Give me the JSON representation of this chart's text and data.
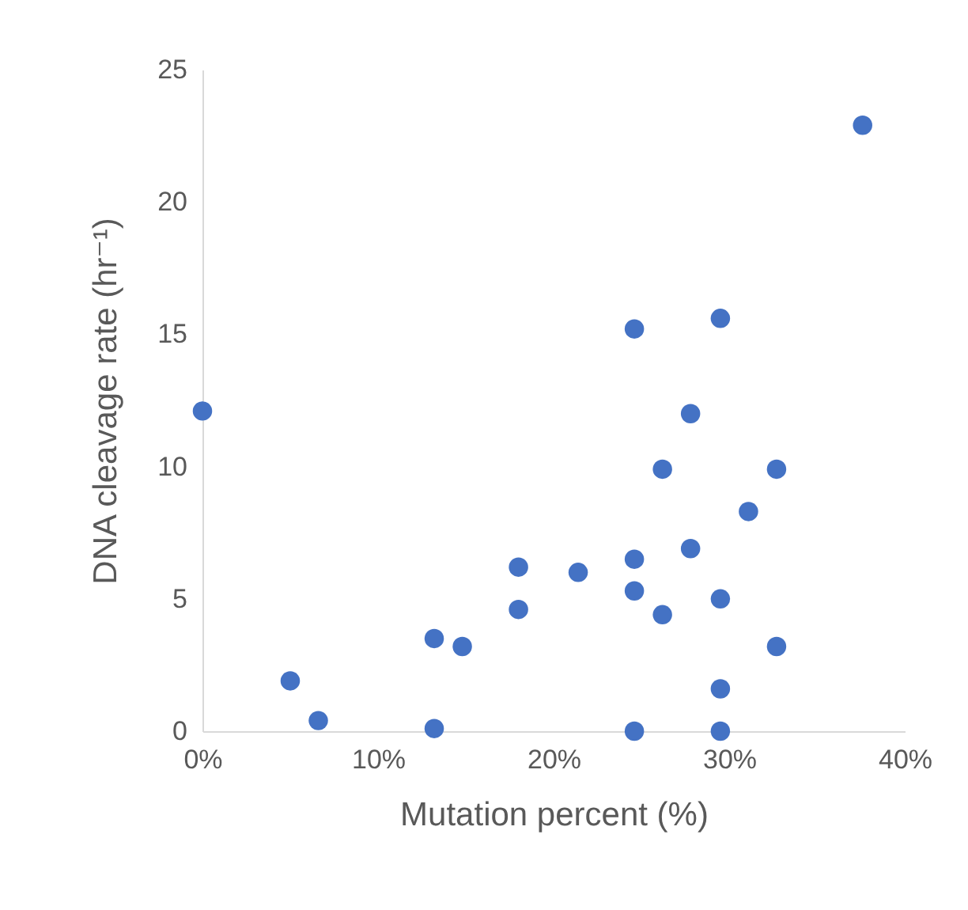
{
  "chart_data": {
    "type": "scatter",
    "xlabel": "Mutation percent (%)",
    "ylabel": "DNA cleavage rate (hr⁻¹)",
    "x": [
      0,
      5.0,
      6.6,
      13.2,
      13.2,
      14.8,
      18.0,
      18.0,
      21.4,
      24.6,
      24.6,
      24.6,
      24.6,
      26.2,
      26.2,
      27.8,
      27.8,
      29.5,
      29.5,
      29.5,
      29.5,
      31.1,
      32.7,
      32.7,
      37.6
    ],
    "values": [
      12.1,
      1.9,
      0.4,
      3.5,
      0.1,
      3.2,
      6.2,
      4.6,
      6.0,
      15.2,
      6.5,
      5.3,
      0,
      9.9,
      4.4,
      12.0,
      6.9,
      15.6,
      5.0,
      1.6,
      0,
      8.3,
      9.9,
      3.2,
      22.9
    ],
    "color": "#4472c4",
    "marker": "circle",
    "grid": false,
    "legend": false,
    "xlim": [
      0,
      40
    ],
    "xticks": [
      {
        "value": 0,
        "label": "0%"
      },
      {
        "value": 10,
        "label": "10%"
      },
      {
        "value": 20,
        "label": "20%"
      },
      {
        "value": 30,
        "label": "30%"
      },
      {
        "value": 40,
        "label": "40%"
      }
    ],
    "ylim": [
      0,
      25
    ],
    "yticks": [
      0,
      5,
      10,
      15,
      20,
      25
    ]
  }
}
